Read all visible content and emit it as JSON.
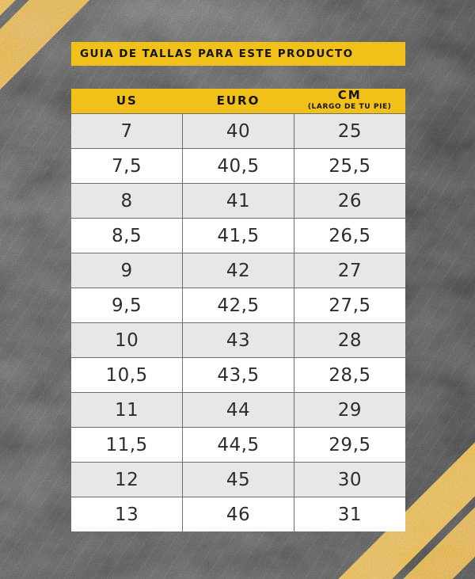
{
  "title_bar": {
    "title": "GUIA DE TALLAS PARA ESTE PRODUCTO"
  },
  "table": {
    "columns": [
      {
        "label": "US",
        "sublabel": ""
      },
      {
        "label": "EURO",
        "sublabel": ""
      },
      {
        "label": "CM",
        "sublabel": "(LARGO DE TU PIE)"
      }
    ],
    "rows": [
      [
        "7",
        "40",
        "25"
      ],
      [
        "7,5",
        "40,5",
        "25,5"
      ],
      [
        "8",
        "41",
        "26"
      ],
      [
        "8,5",
        "41,5",
        "26,5"
      ],
      [
        "9",
        "42",
        "27"
      ],
      [
        "9,5",
        "42,5",
        "27,5"
      ],
      [
        "10",
        "43",
        "28"
      ],
      [
        "10,5",
        "43,5",
        "28,5"
      ],
      [
        "11",
        "44",
        "29"
      ],
      [
        "11,5",
        "44,5",
        "29,5"
      ],
      [
        "12",
        "45",
        "30"
      ],
      [
        "13",
        "46",
        "31"
      ]
    ]
  },
  "colors": {
    "accent_yellow": "#f2c119",
    "stripe_paint_yellow": "#e2a314",
    "row_alt_gray": "#e7e7e7",
    "row_white": "#ffffff",
    "cell_text": "#2d2d2d",
    "asphalt_dark": "#1b1b1b",
    "table_border_gray": "#6e6e6e"
  },
  "chart_data": {
    "type": "table",
    "title": "GUIA DE TALLAS PARA ESTE PRODUCTO",
    "columns": [
      "US",
      "EURO",
      "CM (LARGO DE TU PIE)"
    ],
    "rows": [
      [
        7,
        40,
        25
      ],
      [
        7.5,
        40.5,
        25.5
      ],
      [
        8,
        41,
        26
      ],
      [
        8.5,
        41.5,
        26.5
      ],
      [
        9,
        42,
        27
      ],
      [
        9.5,
        42.5,
        27.5
      ],
      [
        10,
        43,
        28
      ],
      [
        10.5,
        43.5,
        28.5
      ],
      [
        11,
        44,
        29
      ],
      [
        11.5,
        44.5,
        29.5
      ],
      [
        12,
        45,
        30
      ],
      [
        13,
        46,
        31
      ]
    ],
    "layout": "12 data rows, alternating gray/white, yellow header band, title band above"
  }
}
